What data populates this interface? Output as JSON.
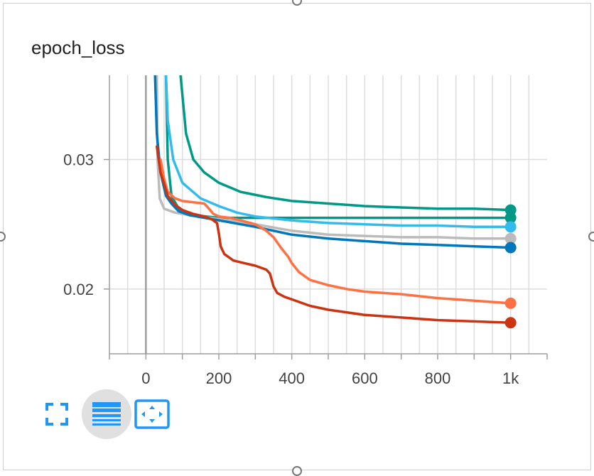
{
  "card": {
    "title": "epoch_loss"
  },
  "colors": {
    "blue": "#0077bb",
    "cyan": "#33bbee",
    "teal": "#009988",
    "orange": "#ff7043",
    "red": "#cc3311",
    "grey": "#bbbbbb",
    "icon_blue": "#2196f3"
  },
  "toolbar": {
    "fullscreen_icon": "fullscreen-icon",
    "log_scale_icon": "toggle-y-log-scale-icon",
    "fit_domain_icon": "fit-domain-icon"
  },
  "chart_data": {
    "type": "line",
    "title": "epoch_loss",
    "xlabel": "",
    "ylabel": "",
    "xlim": [
      -100,
      1100
    ],
    "ylim": [
      0.015,
      0.0365
    ],
    "x_ticks": [
      0,
      200,
      400,
      600,
      800,
      1000
    ],
    "x_tick_labels": [
      "0",
      "200",
      "400",
      "600",
      "800",
      "1k"
    ],
    "y_ticks": [
      0.02,
      0.03
    ],
    "y_tick_labels": [
      "0.02",
      "0.03"
    ],
    "grid": true,
    "legend": "none",
    "series": [
      {
        "color": "#009988",
        "points": [
          [
            95,
            0.0365
          ],
          [
            110,
            0.032
          ],
          [
            130,
            0.03
          ],
          [
            160,
            0.029
          ],
          [
            200,
            0.0282
          ],
          [
            260,
            0.0275
          ],
          [
            330,
            0.0271
          ],
          [
            400,
            0.0268
          ],
          [
            500,
            0.0266
          ],
          [
            600,
            0.0264
          ],
          [
            700,
            0.0263
          ],
          [
            800,
            0.0262
          ],
          [
            900,
            0.0262
          ],
          [
            1000,
            0.0261
          ]
        ]
      },
      {
        "color": "#009988",
        "points": [
          [
            55,
            0.0365
          ],
          [
            60,
            0.03
          ],
          [
            70,
            0.0272
          ],
          [
            90,
            0.0262
          ],
          [
            130,
            0.0257
          ],
          [
            200,
            0.0255
          ],
          [
            300,
            0.0255
          ],
          [
            400,
            0.0255
          ],
          [
            600,
            0.0255
          ],
          [
            800,
            0.0255
          ],
          [
            1000,
            0.0255
          ]
        ]
      },
      {
        "color": "#33bbee",
        "points": [
          [
            55,
            0.0365
          ],
          [
            60,
            0.033
          ],
          [
            75,
            0.03
          ],
          [
            100,
            0.0282
          ],
          [
            150,
            0.027
          ],
          [
            200,
            0.0264
          ],
          [
            250,
            0.0259
          ],
          [
            300,
            0.0256
          ],
          [
            400,
            0.0253
          ],
          [
            500,
            0.0251
          ],
          [
            600,
            0.025
          ],
          [
            700,
            0.0249
          ],
          [
            800,
            0.0249
          ],
          [
            900,
            0.0248
          ],
          [
            1000,
            0.0248
          ]
        ]
      },
      {
        "color": "#bbbbbb",
        "points": [
          [
            30,
            0.0365
          ],
          [
            32,
            0.03
          ],
          [
            38,
            0.027
          ],
          [
            50,
            0.0262
          ],
          [
            80,
            0.0259
          ],
          [
            120,
            0.0257
          ],
          [
            200,
            0.0254
          ],
          [
            300,
            0.025
          ],
          [
            400,
            0.0245
          ],
          [
            500,
            0.0242
          ],
          [
            600,
            0.0241
          ],
          [
            700,
            0.024
          ],
          [
            800,
            0.024
          ],
          [
            900,
            0.0239
          ],
          [
            1000,
            0.0239
          ]
        ]
      },
      {
        "color": "#0077bb",
        "points": [
          [
            25,
            0.0365
          ],
          [
            30,
            0.032
          ],
          [
            40,
            0.029
          ],
          [
            55,
            0.0272
          ],
          [
            70,
            0.0266
          ],
          [
            90,
            0.026
          ],
          [
            120,
            0.0257
          ],
          [
            200,
            0.0253
          ],
          [
            300,
            0.0248
          ],
          [
            400,
            0.0242
          ],
          [
            500,
            0.0239
          ],
          [
            600,
            0.0237
          ],
          [
            700,
            0.0235
          ],
          [
            800,
            0.0234
          ],
          [
            900,
            0.0233
          ],
          [
            1000,
            0.0232
          ]
        ]
      },
      {
        "color": "#ff7043",
        "points": [
          [
            40,
            0.03
          ],
          [
            50,
            0.0285
          ],
          [
            60,
            0.0275
          ],
          [
            80,
            0.027
          ],
          [
            100,
            0.0268
          ],
          [
            130,
            0.0267
          ],
          [
            160,
            0.0266
          ],
          [
            170,
            0.0263
          ],
          [
            185,
            0.0258
          ],
          [
            200,
            0.0256
          ],
          [
            230,
            0.0255
          ],
          [
            260,
            0.0253
          ],
          [
            300,
            0.025
          ],
          [
            330,
            0.0245
          ],
          [
            350,
            0.024
          ],
          [
            370,
            0.0232
          ],
          [
            390,
            0.0225
          ],
          [
            400,
            0.022
          ],
          [
            420,
            0.0213
          ],
          [
            450,
            0.0207
          ],
          [
            500,
            0.0203
          ],
          [
            550,
            0.02
          ],
          [
            600,
            0.0198
          ],
          [
            700,
            0.0196
          ],
          [
            800,
            0.0193
          ],
          [
            900,
            0.0191
          ],
          [
            1000,
            0.0189
          ]
        ]
      },
      {
        "color": "#cc3311",
        "points": [
          [
            30,
            0.031
          ],
          [
            40,
            0.029
          ],
          [
            60,
            0.0272
          ],
          [
            80,
            0.0265
          ],
          [
            100,
            0.0261
          ],
          [
            130,
            0.0258
          ],
          [
            160,
            0.0256
          ],
          [
            180,
            0.0254
          ],
          [
            195,
            0.0251
          ],
          [
            200,
            0.0243
          ],
          [
            205,
            0.0233
          ],
          [
            215,
            0.0227
          ],
          [
            240,
            0.0222
          ],
          [
            270,
            0.022
          ],
          [
            300,
            0.0218
          ],
          [
            330,
            0.0215
          ],
          [
            340,
            0.0212
          ],
          [
            350,
            0.0202
          ],
          [
            360,
            0.0197
          ],
          [
            380,
            0.0194
          ],
          [
            400,
            0.0192
          ],
          [
            450,
            0.0187
          ],
          [
            500,
            0.0184
          ],
          [
            600,
            0.018
          ],
          [
            700,
            0.0178
          ],
          [
            800,
            0.0176
          ],
          [
            900,
            0.0175
          ],
          [
            1000,
            0.0174
          ]
        ]
      }
    ]
  }
}
